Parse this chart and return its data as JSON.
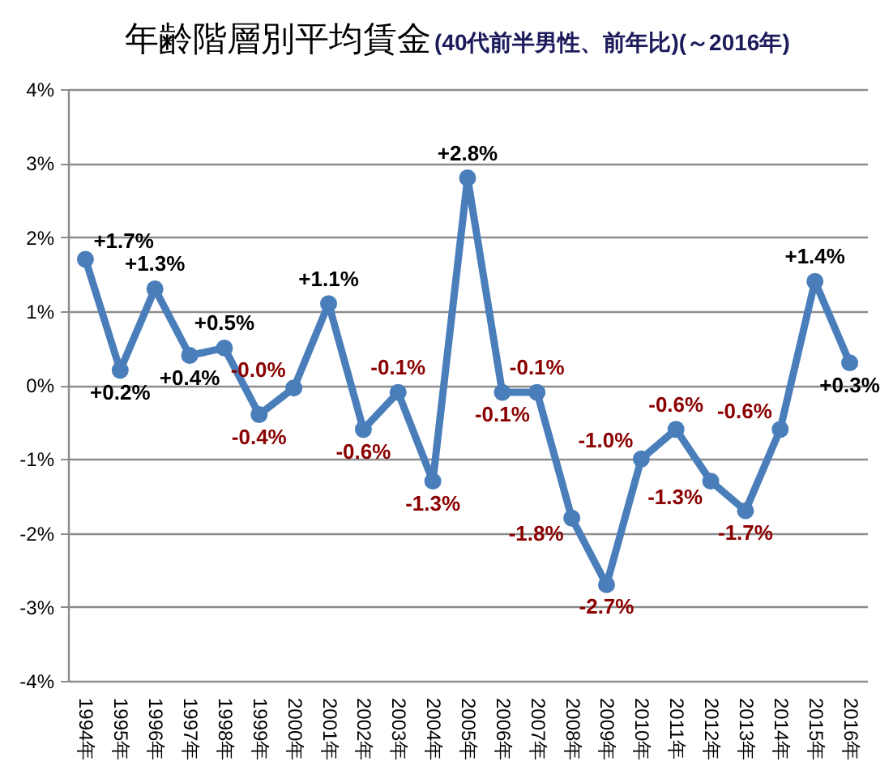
{
  "chart_data": {
    "type": "line",
    "title": "年齢階層別平均賃金",
    "subtitle": "(40代前半男性、前年比)(～2016年)",
    "categories": [
      "1994年",
      "1995年",
      "1996年",
      "1997年",
      "1998年",
      "1999年",
      "2000年",
      "2001年",
      "2002年",
      "2003年",
      "2004年",
      "2005年",
      "2006年",
      "2007年",
      "2008年",
      "2009年",
      "2010年",
      "2011年",
      "2012年",
      "2013年",
      "2014年",
      "2015年",
      "2016年"
    ],
    "series": [
      {
        "color": "#4a7ebb",
        "values": [
          1.7,
          0.2,
          1.3,
          0.4,
          0.5,
          -0.4,
          -0.04,
          1.1,
          -0.6,
          -0.1,
          -1.3,
          2.8,
          -0.1,
          -0.1,
          -1.8,
          -2.7,
          -1.0,
          -0.6,
          -1.3,
          -1.7,
          -0.6,
          1.4,
          0.3
        ],
        "value_labels": [
          "+1.7%",
          "+0.2%",
          "+1.3%",
          "+0.4%",
          "+0.5%",
          "-0.4%",
          "-0.0%",
          "+1.1%",
          "-0.6%",
          "-0.1%",
          "-1.3%",
          "+2.8%",
          "-0.1%",
          "-0.1%",
          "-1.8%",
          "-2.7%",
          "-1.0%",
          "-0.6%",
          "-1.3%",
          "-1.7%",
          "-0.6%",
          "+1.4%",
          "+0.3%"
        ]
      }
    ],
    "ylim": [
      -4,
      4
    ],
    "yticks": [
      {
        "value": -4,
        "label": "-4%"
      },
      {
        "value": -3,
        "label": "-3%"
      },
      {
        "value": -2,
        "label": "-2%"
      },
      {
        "value": -1,
        "label": "-1%"
      },
      {
        "value": 0,
        "label": "0%"
      },
      {
        "value": 1,
        "label": "1%"
      },
      {
        "value": 2,
        "label": "2%"
      },
      {
        "value": 3,
        "label": "3%"
      },
      {
        "value": 4,
        "label": "4%"
      }
    ],
    "grid": "y",
    "marker": "circle",
    "line_style": "solid"
  }
}
